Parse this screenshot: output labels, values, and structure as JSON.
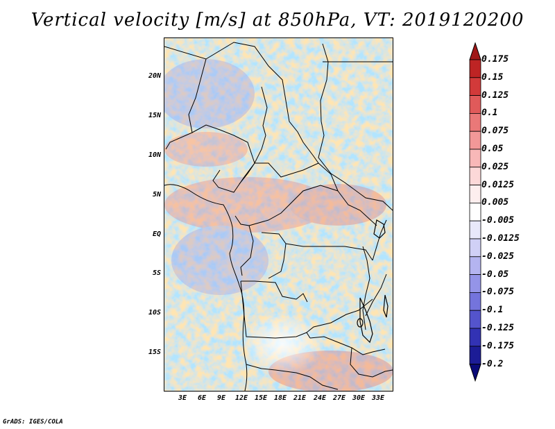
{
  "title": "Vertical velocity [m/s] at 850hPa, VT: 2019120200",
  "credit": "GrADS: IGES/COLA",
  "lat_labels": [
    "20N",
    "15N",
    "10N",
    "5N",
    "EQ",
    "5S",
    "10S",
    "15S"
  ],
  "lon_labels": [
    "3E",
    "6E",
    "9E",
    "12E",
    "15E",
    "18E",
    "21E",
    "24E",
    "27E",
    "30E",
    "33E"
  ],
  "colorbar": {
    "labels": [
      "0.175",
      "0.15",
      "0.125",
      "0.1",
      "0.075",
      "0.05",
      "0.025",
      "0.0125",
      "0.005",
      "-0.005",
      "-0.0125",
      "-0.025",
      "-0.05",
      "-0.075",
      "-0.1",
      "-0.125",
      "-0.175",
      "-0.2"
    ],
    "colors": [
      "#a01818",
      "#be2424",
      "#d23a3a",
      "#e05a5a",
      "#ea7878",
      "#f29898",
      "#f8b8b8",
      "#fcd8d8",
      "#fdeeee",
      "#ffffff",
      "#e8e8fa",
      "#d0d0f6",
      "#b4b4f0",
      "#9494e8",
      "#7474dc",
      "#5454cc",
      "#3232b4",
      "#1c1c96",
      "#0a0a78"
    ]
  }
}
